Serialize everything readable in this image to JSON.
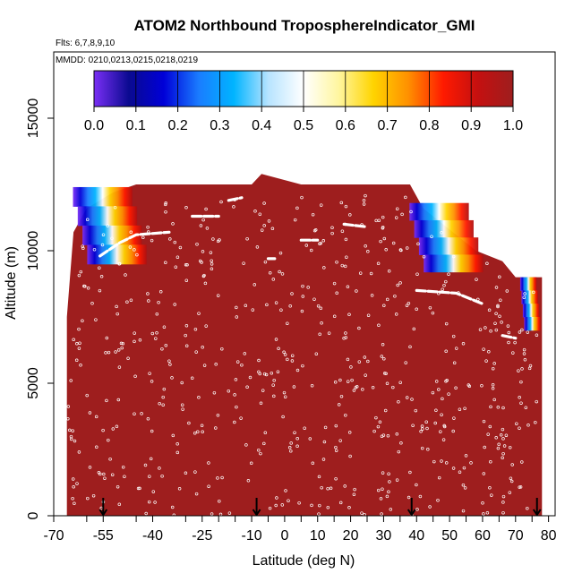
{
  "chart_data": {
    "type": "heatmap",
    "title": "ATOM2 Northbound TroposphereIndicator_GMI",
    "subtitle_flights": "Flts: 6,7,8,9,10",
    "subtitle_dates": "MMDD: 0210,0213,0215,0218,0219",
    "xlabel": "Latitude (deg N)",
    "ylabel": "Altitude (m)",
    "xlim": [
      -70,
      82
    ],
    "ylim": [
      0,
      17500
    ],
    "x_ticks": [
      -70,
      -55,
      -40,
      -25,
      -10,
      0,
      10,
      20,
      30,
      40,
      50,
      60,
      70,
      80
    ],
    "x_tick_labels": [
      "-70",
      "-55",
      "-40",
      "-25",
      "-10",
      "0",
      "10",
      "20",
      "30",
      "40",
      "50",
      "60",
      "70",
      "80"
    ],
    "x_minor_ticks": [
      -60,
      -45,
      -30,
      -20,
      -15,
      -5,
      5,
      15,
      25,
      35,
      45,
      55,
      65,
      75
    ],
    "y_ticks": [
      0,
      5000,
      10000,
      15000
    ],
    "y_tick_labels": [
      "0",
      "5000",
      "10000",
      "15000"
    ],
    "colorbar": {
      "min": 0.0,
      "max": 1.0,
      "ticks": [
        0.0,
        0.1,
        0.2,
        0.3,
        0.4,
        0.5,
        0.6,
        0.7,
        0.8,
        0.9,
        1.0
      ],
      "tick_labels": [
        "0.0",
        "0.1",
        "0.2",
        "0.3",
        "0.4",
        "0.5",
        "0.6",
        "0.7",
        "0.8",
        "0.9",
        "1.0"
      ],
      "stops": [
        "#7a2ff5",
        "#0a0a90",
        "#0000d8",
        "#1a7cff",
        "#00b4ff",
        "#b8e4ff",
        "#ffffff",
        "#fff6a0",
        "#ffd400",
        "#ff9000",
        "#ff1a00",
        "#c41010",
        "#9e1e1e"
      ]
    },
    "field_value_default": 1.0,
    "profile_top_altitude": [
      [
        -66,
        7500
      ],
      [
        -64,
        10700
      ],
      [
        -60,
        11600
      ],
      [
        -52,
        12200
      ],
      [
        -45,
        12500
      ],
      [
        -30,
        12500
      ],
      [
        -10,
        12500
      ],
      [
        -7,
        12900
      ],
      [
        5,
        12500
      ],
      [
        20,
        12500
      ],
      [
        38,
        12500
      ],
      [
        42,
        11600
      ],
      [
        50,
        10800
      ],
      [
        58,
        10000
      ],
      [
        66,
        9600
      ],
      [
        70,
        9000
      ],
      [
        78,
        9000
      ],
      [
        78,
        7000
      ]
    ],
    "transition_bands": [
      {
        "name": "southern-upper-band",
        "lat": [
          -62,
          -44
        ],
        "alt": [
          9500,
          12400
        ],
        "value_low": 0.05,
        "value_high": 0.95
      },
      {
        "name": "northern-upper-band",
        "lat": [
          40,
          58
        ],
        "alt": [
          9200,
          11800
        ],
        "value_low": 0.05,
        "value_high": 0.95
      },
      {
        "name": "high-lat-column",
        "lat": [
          72,
          77
        ],
        "alt": [
          7000,
          9000
        ],
        "value_low": 0.05,
        "value_high": 0.95
      }
    ],
    "flight_track_segments": [
      [
        [
          -56,
          9800
        ],
        [
          -50,
          10300
        ],
        [
          -45,
          10600
        ],
        [
          -35,
          10700
        ]
      ],
      [
        [
          -28,
          11300
        ],
        [
          -20,
          11300
        ]
      ],
      [
        [
          -17,
          11900
        ],
        [
          -13,
          12000
        ]
      ],
      [
        [
          -5,
          9700
        ],
        [
          -3,
          9700
        ]
      ],
      [
        [
          5,
          10400
        ],
        [
          10,
          10400
        ]
      ],
      [
        [
          18,
          11000
        ],
        [
          25,
          10900
        ]
      ],
      [
        [
          40,
          8500
        ],
        [
          52,
          8400
        ],
        [
          60,
          8000
        ]
      ],
      [
        [
          66,
          6800
        ],
        [
          70,
          6700
        ]
      ]
    ],
    "sample_points_count": 620,
    "flight_profile_markers_lat": [
      -55,
      -8.5,
      38.5,
      76.5
    ]
  }
}
